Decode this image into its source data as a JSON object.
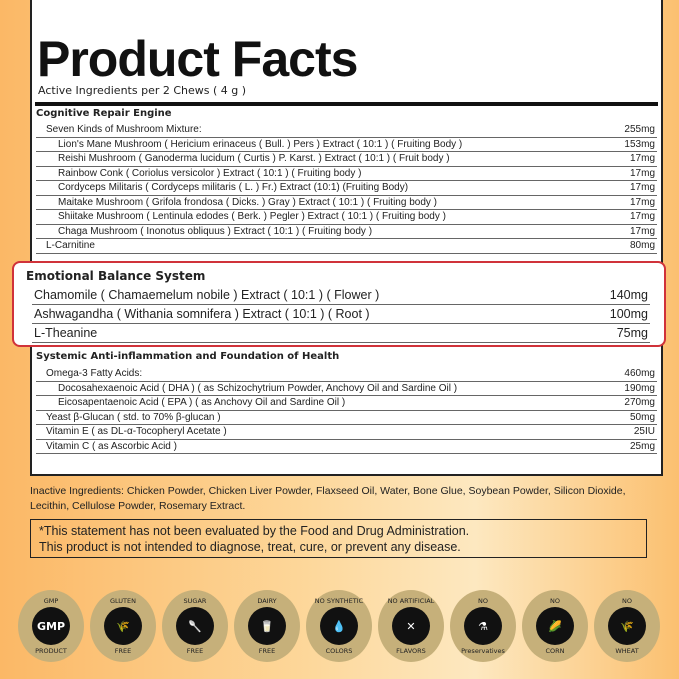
{
  "title": "Product Facts",
  "subtitle": "Active Ingredients per 2 Chews ( 4 g )",
  "section1": {
    "heading": "Cognitive Repair Engine",
    "rows": [
      {
        "name": "Seven Kinds of Mushroom Mixture:",
        "amount": "255mg",
        "level": 1
      },
      {
        "name": "Lion's Mane Mushroom ( Hericium erinaceus ( Bull. ) Pers ) Extract ( 10:1 ) ( Fruiting Body )",
        "amount": "153mg",
        "level": 2
      },
      {
        "name": "Reishi Mushroom ( Ganoderma lucidum ( Curtis ) P. Karst. ) Extract ( 10:1 ) ( Fruit body )",
        "amount": "17mg",
        "level": 2
      },
      {
        "name": "Rainbow Conk ( Coriolus versicolor ) Extract ( 10:1 ) ( Fruiting body )",
        "amount": "17mg",
        "level": 2
      },
      {
        "name": "Cordyceps Militaris ( Cordyceps militaris ( L. ) Fr.) Extract  (10:1) (Fruiting Body)",
        "amount": "17mg",
        "level": 2
      },
      {
        "name": "Maitake Mushroom ( Grifola frondosa ( Dicks. ) Gray ) Extract ( 10:1 ) ( Fruiting body )",
        "amount": "17mg",
        "level": 2
      },
      {
        "name": "Shiitake Mushroom ( Lentinula edodes ( Berk. ) Pegler ) Extract ( 10:1 ) ( Fruiting body )",
        "amount": "17mg",
        "level": 2
      },
      {
        "name": "Chaga Mushroom ( Inonotus obliquus ) Extract ( 10:1 ) ( Fruiting body )",
        "amount": "17mg",
        "level": 2
      },
      {
        "name": "L-Carnitine",
        "amount": "80mg",
        "level": 1
      }
    ]
  },
  "section2": {
    "heading": "Emotional Balance System",
    "rows": [
      {
        "name": "Chamomile ( Chamaemelum nobile ) Extract ( 10:1 ) ( Flower )",
        "amount": "140mg"
      },
      {
        "name": "Ashwagandha ( Withania somnifera ) Extract ( 10:1 ) ( Root )",
        "amount": "100mg"
      },
      {
        "name": "L-Theanine",
        "amount": "75mg"
      }
    ],
    "highlight_color": "#d0323a"
  },
  "section3": {
    "heading": "Systemic Anti-inflammation and Foundation of Health",
    "rows": [
      {
        "name": "Omega-3 Fatty Acids:",
        "amount": "460mg",
        "level": 1
      },
      {
        "name": "Docosahexaenoic Acid ( DHA ) ( as Schizochytrium Powder, Anchovy Oil and Sardine Oil )",
        "amount": "190mg",
        "level": 2
      },
      {
        "name": "Eicosapentaenoic Acid ( EPA ) ( as Anchovy Oil and Sardine Oil )",
        "amount": "270mg",
        "level": 2
      },
      {
        "name": "Yeast β-Glucan ( std. to 70% β-glucan )",
        "amount": "50mg",
        "level": 1
      },
      {
        "name": "Vitamin E ( as DL-α-Tocopheryl Acetate )",
        "amount": "25IU",
        "level": 1
      },
      {
        "name": "Vitamin  C ( as Ascorbic Acid )",
        "amount": "25mg",
        "level": 1
      }
    ]
  },
  "inactive": "Inactive Ingredients: Chicken Powder, Chicken Liver Powder, Flaxseed Oil, Water, Bone Glue, Soybean Powder, Silicon Dioxide, Lecithin, Cellulose Powder, Rosemary Extract.",
  "disclaimer": [
    "*This statement has not been evaluated by the Food and Drug Administration.",
    "This product is not intended to diagnose, treat, cure, or prevent any disease."
  ],
  "badges": [
    {
      "top": "GMP",
      "center": "GMP",
      "bottom": "PRODUCT",
      "icon": "gmp-icon"
    },
    {
      "top": "GLUTEN",
      "center": "🌾",
      "bottom": "FREE",
      "icon": "wheat-icon"
    },
    {
      "top": "SUGAR",
      "center": "🥄",
      "bottom": "FREE",
      "icon": "sugar-spoon-icon"
    },
    {
      "top": "DAIRY",
      "center": "🥛",
      "bottom": "FREE",
      "icon": "milk-carton-icon"
    },
    {
      "top": "NO SYNTHETIC",
      "center": "💧",
      "bottom": "COLORS",
      "icon": "drop-icon"
    },
    {
      "top": "NO ARTIFICIAL",
      "center": "✕",
      "bottom": "FLAVORS",
      "icon": "dropper-icon"
    },
    {
      "top": "NO",
      "center": "⚗",
      "bottom": "Preservatives",
      "icon": "flask-icon"
    },
    {
      "top": "NO",
      "center": "🌽",
      "bottom": "CORN",
      "icon": "corn-icon"
    },
    {
      "top": "NO",
      "center": "🌾",
      "bottom": "WHEAT",
      "icon": "wheat-icon"
    }
  ]
}
